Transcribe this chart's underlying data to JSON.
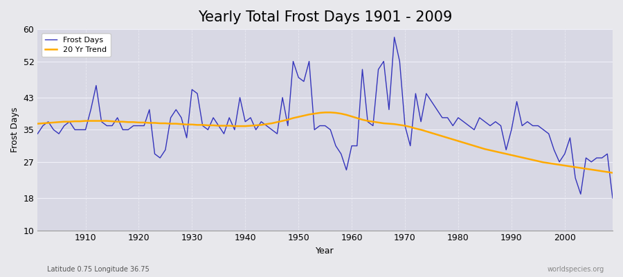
{
  "title": "Yearly Total Frost Days 1901 - 2009",
  "xlabel": "Year",
  "ylabel": "Frost Days",
  "subtitle": "Latitude 0.75 Longitude 36.75",
  "watermark": "worldspecies.org",
  "ylim": [
    10,
    60
  ],
  "yticks": [
    10,
    18,
    27,
    35,
    43,
    52,
    60
  ],
  "xlim": [
    1901,
    2009
  ],
  "xticks": [
    1910,
    1920,
    1930,
    1940,
    1950,
    1960,
    1970,
    1980,
    1990,
    2000
  ],
  "frost_days": {
    "1901": 34,
    "1902": 36,
    "1903": 37,
    "1904": 35,
    "1905": 34,
    "1906": 36,
    "1907": 37,
    "1908": 35,
    "1909": 35,
    "1910": 35,
    "1911": 40,
    "1912": 46,
    "1913": 37,
    "1914": 36,
    "1915": 36,
    "1916": 38,
    "1917": 35,
    "1918": 35,
    "1919": 36,
    "1920": 36,
    "1921": 36,
    "1922": 40,
    "1923": 29,
    "1924": 28,
    "1925": 30,
    "1926": 38,
    "1927": 40,
    "1928": 38,
    "1929": 33,
    "1930": 45,
    "1931": 44,
    "1932": 36,
    "1933": 35,
    "1934": 38,
    "1935": 36,
    "1936": 34,
    "1937": 38,
    "1938": 35,
    "1939": 43,
    "1940": 37,
    "1941": 38,
    "1942": 35,
    "1943": 37,
    "1944": 36,
    "1945": 35,
    "1946": 34,
    "1947": 43,
    "1948": 36,
    "1949": 52,
    "1950": 48,
    "1951": 47,
    "1952": 52,
    "1953": 35,
    "1954": 36,
    "1955": 36,
    "1956": 35,
    "1957": 31,
    "1958": 29,
    "1959": 25,
    "1960": 31,
    "1961": 31,
    "1962": 50,
    "1963": 37,
    "1964": 36,
    "1965": 50,
    "1966": 52,
    "1967": 40,
    "1968": 58,
    "1969": 52,
    "1970": 36,
    "1971": 31,
    "1972": 44,
    "1973": 37,
    "1974": 44,
    "1975": 42,
    "1976": 40,
    "1977": 38,
    "1978": 38,
    "1979": 36,
    "1980": 38,
    "1981": 37,
    "1982": 36,
    "1983": 35,
    "1984": 38,
    "1985": 37,
    "1986": 36,
    "1987": 37,
    "1988": 36,
    "1989": 30,
    "1990": 35,
    "1991": 42,
    "1992": 36,
    "1993": 37,
    "1994": 36,
    "1995": 36,
    "1996": 35,
    "1997": 34,
    "1998": 30,
    "1999": 27,
    "2000": 29,
    "2001": 33,
    "2002": 23,
    "2003": 19,
    "2004": 28,
    "2005": 27,
    "2006": 28,
    "2007": 28,
    "2008": 29,
    "2009": 18
  },
  "trend_days": {
    "1901": 36.5,
    "1902": 36.6,
    "1903": 36.7,
    "1904": 36.8,
    "1905": 36.9,
    "1906": 37.0,
    "1907": 37.0,
    "1908": 37.1,
    "1909": 37.1,
    "1910": 37.2,
    "1911": 37.2,
    "1912": 37.2,
    "1913": 37.2,
    "1914": 37.2,
    "1915": 37.1,
    "1916": 37.0,
    "1917": 37.0,
    "1918": 36.9,
    "1919": 36.9,
    "1920": 36.8,
    "1921": 36.8,
    "1922": 36.7,
    "1923": 36.7,
    "1924": 36.6,
    "1925": 36.6,
    "1926": 36.5,
    "1927": 36.5,
    "1928": 36.4,
    "1929": 36.3,
    "1930": 36.3,
    "1931": 36.2,
    "1932": 36.2,
    "1933": 36.1,
    "1934": 36.1,
    "1935": 36.0,
    "1936": 36.0,
    "1937": 36.0,
    "1938": 35.9,
    "1939": 35.9,
    "1940": 35.9,
    "1941": 36.0,
    "1942": 36.1,
    "1943": 36.2,
    "1944": 36.4,
    "1945": 36.6,
    "1946": 36.9,
    "1947": 37.2,
    "1948": 37.5,
    "1949": 37.9,
    "1950": 38.2,
    "1951": 38.5,
    "1952": 38.8,
    "1953": 39.0,
    "1954": 39.2,
    "1955": 39.3,
    "1956": 39.3,
    "1957": 39.2,
    "1958": 39.0,
    "1959": 38.7,
    "1960": 38.3,
    "1961": 37.9,
    "1962": 37.5,
    "1963": 37.2,
    "1964": 37.0,
    "1965": 36.8,
    "1966": 36.6,
    "1967": 36.5,
    "1968": 36.4,
    "1969": 36.2,
    "1970": 36.0,
    "1971": 35.7,
    "1972": 35.3,
    "1973": 35.0,
    "1974": 34.6,
    "1975": 34.2,
    "1976": 33.8,
    "1977": 33.4,
    "1978": 33.0,
    "1979": 32.6,
    "1980": 32.2,
    "1981": 31.8,
    "1982": 31.4,
    "1983": 31.0,
    "1984": 30.6,
    "1985": 30.2,
    "1986": 29.9,
    "1987": 29.6,
    "1988": 29.3,
    "1989": 29.0,
    "1990": 28.7,
    "1991": 28.4,
    "1992": 28.1,
    "1993": 27.8,
    "1994": 27.5,
    "1995": 27.2,
    "1996": 26.9,
    "1997": 26.7,
    "1998": 26.5,
    "1999": 26.3,
    "2000": 26.1,
    "2001": 25.9,
    "2002": 25.7,
    "2003": 25.5,
    "2004": 25.3,
    "2005": 25.1,
    "2006": 24.9,
    "2007": 24.7,
    "2008": 24.5,
    "2009": 24.3
  },
  "line_color": "#3333bb",
  "trend_color": "#ffaa00",
  "fig_bg_color": "#e8e8ec",
  "plot_bg_color": "#d8d8e4",
  "grid_color": "#f0f0f8",
  "title_fontsize": 15,
  "legend_fontsize": 8,
  "axis_fontsize": 9,
  "tick_fontsize": 9
}
